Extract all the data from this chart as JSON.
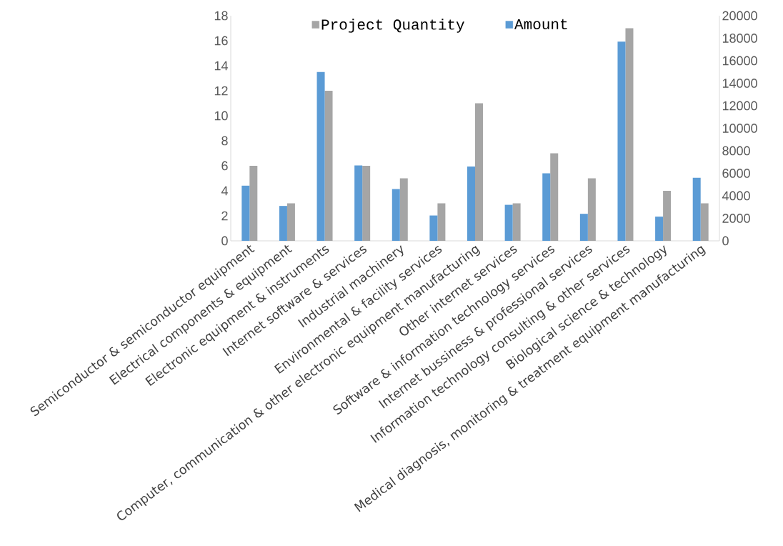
{
  "chart_data": {
    "type": "bar",
    "categories": [
      "Semiconductor & semiconductor equipment",
      "Electrical components & equipment",
      "Electronic equipment & instruments",
      "Internet software & services",
      "Industrial machinery",
      "Environmental & facility services",
      "Computer, communication & other electronic equipment manufacturing",
      "Other internet services",
      "Software & information technology services",
      "Internet bussiness & professional services",
      "Information technology consulting & other services",
      "Biological science & technology",
      "Medical diagnosis, monitoring & treatment equipment manufacturing"
    ],
    "series": [
      {
        "name": "Project Quantity",
        "color": "#a5a5a5",
        "values": [
          6,
          3,
          12,
          6,
          5,
          3,
          11,
          3,
          7,
          5,
          17,
          4,
          3
        ]
      },
      {
        "name": "Amount",
        "color": "#5b9bd5",
        "axis": "y2",
        "values": [
          4900,
          3100,
          15000,
          6700,
          4600,
          2250,
          6600,
          3200,
          6000,
          2400,
          17700,
          2150,
          5600
        ]
      }
    ],
    "ylim": [
      0,
      18
    ],
    "yticks": [
      0,
      2,
      4,
      6,
      8,
      10,
      12,
      14,
      16,
      18
    ],
    "y2lim": [
      0,
      20000
    ],
    "y2ticks": [
      0,
      2000,
      4000,
      6000,
      8000,
      10000,
      12000,
      14000,
      16000,
      18000,
      20000
    ],
    "legend": "top"
  }
}
